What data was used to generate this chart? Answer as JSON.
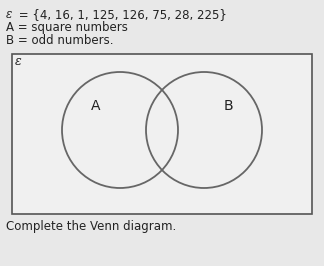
{
  "universal_set_label": "ε",
  "set_a_label": "A",
  "set_b_label": "B",
  "header_line1_prefix": "ε",
  "header_line1_suffix": " = {4, 16, 1, 125, 126, 75, 28, 225}",
  "header_line2": "A = square numbers",
  "header_line3": "B = odd numbers.",
  "footer": "Complete the Venn diagram.",
  "bg_color": "#e8e8e8",
  "rect_facecolor": "#f0f0f0",
  "rect_edgecolor": "#555555",
  "circle_edgecolor": "#666666",
  "text_color": "#222222",
  "font_size_header": 8.5,
  "font_size_labels": 10,
  "font_size_footer": 8.5,
  "font_size_epsilon": 9
}
